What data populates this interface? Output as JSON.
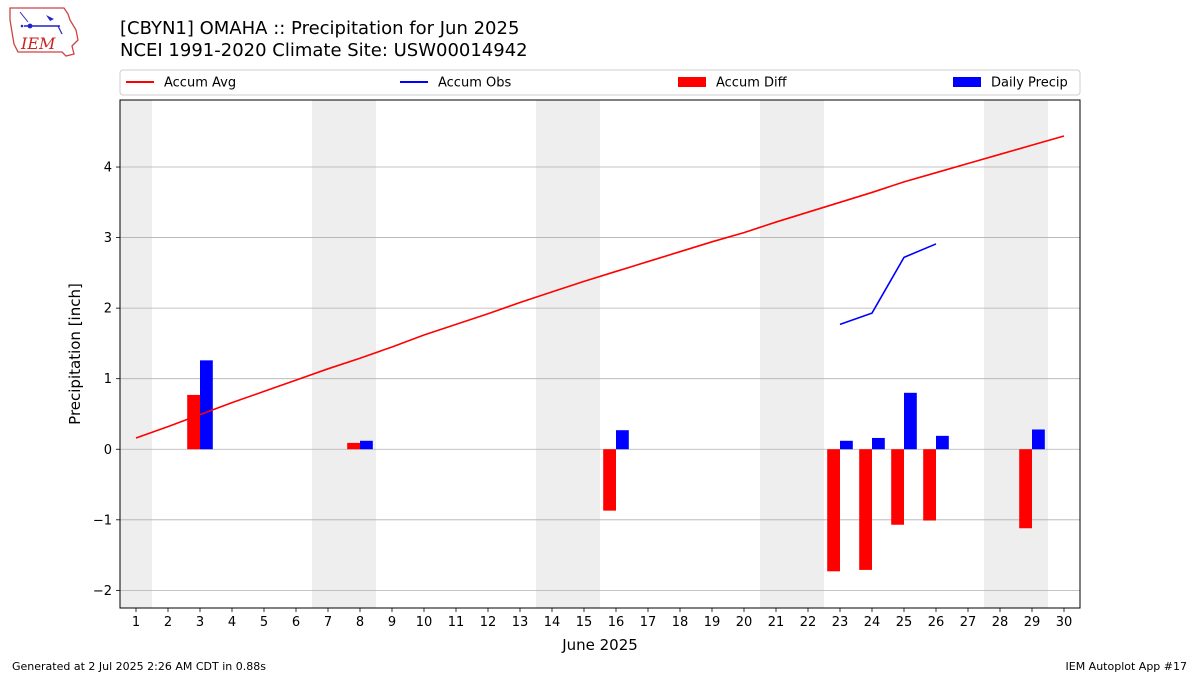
{
  "header": {
    "title_line1": "[CBYN1] OMAHA :: Precipitation for Jun 2025",
    "title_line2": "NCEI 1991-2020 Climate Site: USW00014942",
    "logo_text": "IEM"
  },
  "footer": {
    "left": "Generated at 2 Jul 2025 2:26 AM CDT in 0.88s",
    "right": "IEM Autoplot App #17"
  },
  "colors": {
    "avg": "#ff0000",
    "obs": "#0000ff",
    "diff": "#ff0000",
    "daily": "#0000ff",
    "weekend": "#eeeeee",
    "grid": "#b0b0b0"
  },
  "chart_data": {
    "type": "bar",
    "title": "[CBYN1] OMAHA :: Precipitation for Jun 2025",
    "subtitle": "NCEI 1991-2020 Climate Site: USW00014942",
    "xlabel": "June 2025",
    "ylabel": "Precipitation [inch]",
    "xlim": [
      0.5,
      30.5
    ],
    "ylim": [
      -2.25,
      4.95
    ],
    "yticks": [
      -2,
      -1,
      0,
      1,
      2,
      3,
      4
    ],
    "ytick_labels": [
      "−2",
      "−1",
      "0",
      "1",
      "2",
      "3",
      "4"
    ],
    "x": [
      1,
      2,
      3,
      4,
      5,
      6,
      7,
      8,
      9,
      10,
      11,
      12,
      13,
      14,
      15,
      16,
      17,
      18,
      19,
      20,
      21,
      22,
      23,
      24,
      25,
      26,
      27,
      28,
      29,
      30
    ],
    "weekend_days": [
      1,
      7,
      8,
      14,
      15,
      21,
      22,
      28,
      29
    ],
    "grid": "horizontal",
    "legend_position": "top",
    "legend": [
      "Accum Avg",
      "Accum Obs",
      "Accum Diff",
      "Daily Precip"
    ],
    "series": [
      {
        "name": "Accum Avg",
        "kind": "line",
        "values": [
          0.16,
          0.32,
          0.49,
          0.66,
          0.82,
          0.98,
          1.14,
          1.29,
          1.45,
          1.62,
          1.77,
          1.92,
          2.08,
          2.23,
          2.38,
          2.52,
          2.66,
          2.8,
          2.94,
          3.07,
          3.22,
          3.36,
          3.5,
          3.64,
          3.79,
          3.92,
          4.05,
          4.18,
          4.31,
          4.44
        ]
      },
      {
        "name": "Accum Obs",
        "kind": "line",
        "x": [
          23,
          24,
          25,
          26
        ],
        "values": [
          1.77,
          1.93,
          2.72,
          2.91
        ]
      },
      {
        "name": "Accum Diff",
        "kind": "bar",
        "x": [
          3,
          8,
          16,
          23,
          24,
          25,
          26,
          29
        ],
        "values": [
          0.77,
          0.09,
          -0.87,
          -1.73,
          -1.71,
          -1.07,
          -1.01,
          -1.12
        ]
      },
      {
        "name": "Daily Precip",
        "kind": "bar",
        "x": [
          3,
          8,
          16,
          23,
          24,
          25,
          26,
          29
        ],
        "values": [
          1.26,
          0.12,
          0.27,
          0.12,
          0.16,
          0.8,
          0.19,
          0.28
        ]
      }
    ]
  }
}
